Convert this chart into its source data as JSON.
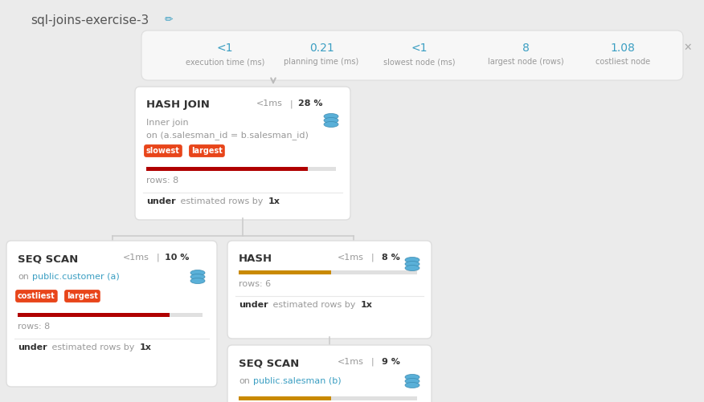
{
  "title": "sql-joins-exercise-3",
  "bg_color": "#ebebeb",
  "card_bg": "#ffffff",
  "stats": [
    {
      "value": "<1",
      "label": "execution time (ms)"
    },
    {
      "value": "0.21",
      "label": "planning time (ms)"
    },
    {
      "value": "<1",
      "label": "slowest node (ms)"
    },
    {
      "value": "8",
      "label": "largest node (rows)"
    },
    {
      "value": "1.08",
      "label": "costliest node"
    }
  ],
  "orange_color": "#c98a00",
  "red_color": "#b00000",
  "badge_red": "#e8451a",
  "blue_color": "#3a9ec2",
  "text_dark": "#444444",
  "text_gray": "#999999",
  "text_bold": "#333333",
  "connector_color": "#cccccc",
  "card_border": "#e0e0e0",
  "stats_bg": "#f5f5f5"
}
